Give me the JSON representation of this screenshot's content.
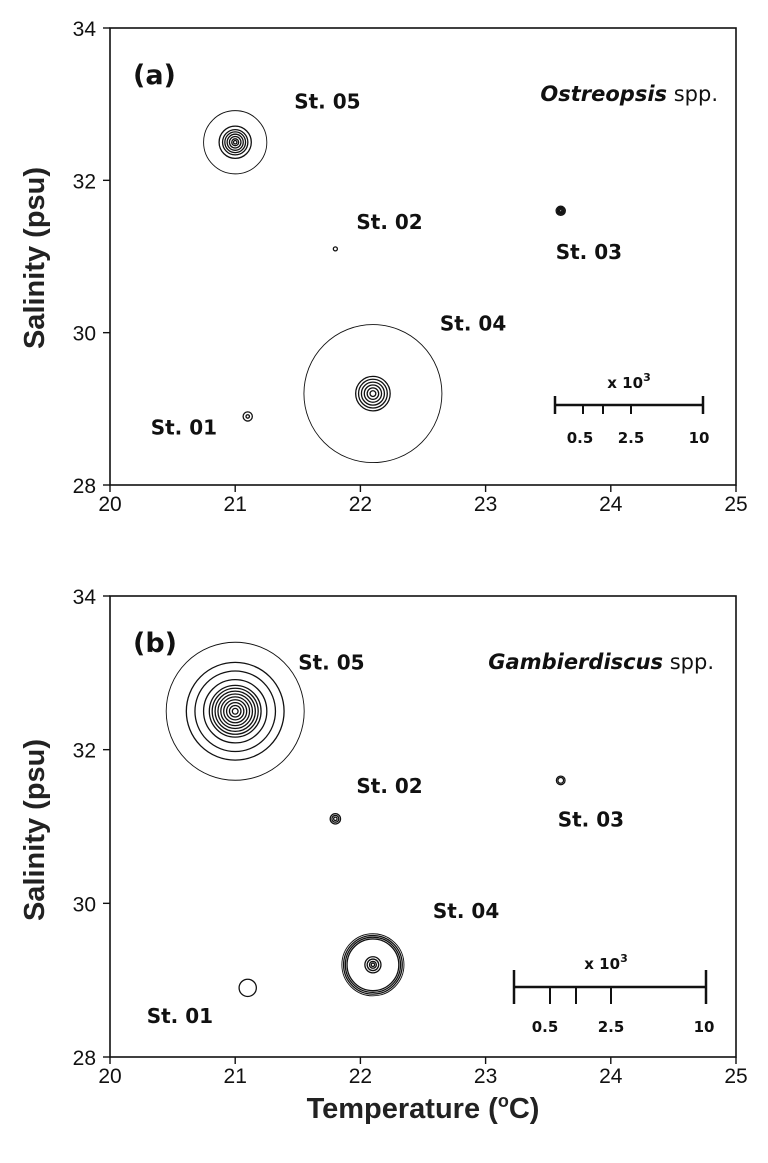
{
  "chart_data": [
    {
      "type": "bubble",
      "panel_label": "(a)",
      "species_italic": "Ostreopsis",
      "species_suffix": " spp.",
      "xlim": [
        20,
        25
      ],
      "ylim": [
        28,
        34
      ],
      "xticks": [
        "20",
        "21",
        "22",
        "23",
        "24",
        "25"
      ],
      "yticks": [
        "28",
        "30",
        "32",
        "34"
      ],
      "ylabel": "Salinity (psu)",
      "stations": [
        {
          "label": "St. 01",
          "temperature": 21.1,
          "salinity": 28.9,
          "rings": [
            0.3,
            0.8
          ]
        },
        {
          "label": "St. 02",
          "temperature": 21.8,
          "salinity": 31.1,
          "rings": [
            0.35
          ]
        },
        {
          "label": "St. 03",
          "temperature": 23.6,
          "salinity": 31.6,
          "rings": [
            0.2,
            0.4,
            0.6,
            0.8
          ]
        },
        {
          "label": "St. 04",
          "temperature": 22.1,
          "salinity": 29.2,
          "rings": [
            0.5,
            1.0,
            1.5,
            2.0,
            2.5,
            3.0,
            12.0
          ]
        },
        {
          "label": "St. 05",
          "temperature": 21.0,
          "salinity": 32.5,
          "rings": [
            0.3,
            0.6,
            1.0,
            1.4,
            1.8,
            2.2,
            2.8,
            5.5
          ]
        }
      ],
      "scale": {
        "multiplier_prefix": "x 10",
        "multiplier_exp": "3",
        "labels": [
          "0.5",
          "2.5",
          "10"
        ]
      }
    },
    {
      "type": "bubble",
      "panel_label": "(b)",
      "species_italic": "Gambierdiscus",
      "species_suffix": " spp.",
      "xlim": [
        20,
        25
      ],
      "ylim": [
        28,
        34
      ],
      "xticks": [
        "20",
        "21",
        "22",
        "23",
        "24",
        "25"
      ],
      "yticks": [
        "28",
        "30",
        "32",
        "34"
      ],
      "xlabel_main": "Temperature (",
      "xlabel_sup": "o",
      "xlabel_end": "C)",
      "ylabel": "Salinity (psu)",
      "stations": [
        {
          "label": "St. 01",
          "temperature": 21.1,
          "salinity": 28.9,
          "rings": [
            1.5
          ]
        },
        {
          "label": "St. 02",
          "temperature": 21.8,
          "salinity": 31.1,
          "rings": [
            0.3,
            0.6,
            0.9
          ]
        },
        {
          "label": "St. 03",
          "temperature": 23.6,
          "salinity": 31.6,
          "rings": [
            0.5,
            0.75
          ]
        },
        {
          "label": "St. 04",
          "temperature": 22.1,
          "salinity": 29.2,
          "rings": [
            0.3,
            0.6,
            1.0,
            1.4,
            4.5,
            4.8,
            5.1,
            5.4
          ]
        },
        {
          "label": "St. 05",
          "temperature": 21.0,
          "salinity": 32.5,
          "rings": [
            0.5,
            1.0,
            1.5,
            2.0,
            2.5,
            3.0,
            3.5,
            4.0,
            4.5,
            5.5,
            7.0,
            8.5,
            12.0
          ]
        }
      ],
      "scale": {
        "multiplier_prefix": "x 10",
        "multiplier_exp": "3",
        "labels": [
          "0.5",
          "2.5",
          "10"
        ]
      }
    }
  ]
}
